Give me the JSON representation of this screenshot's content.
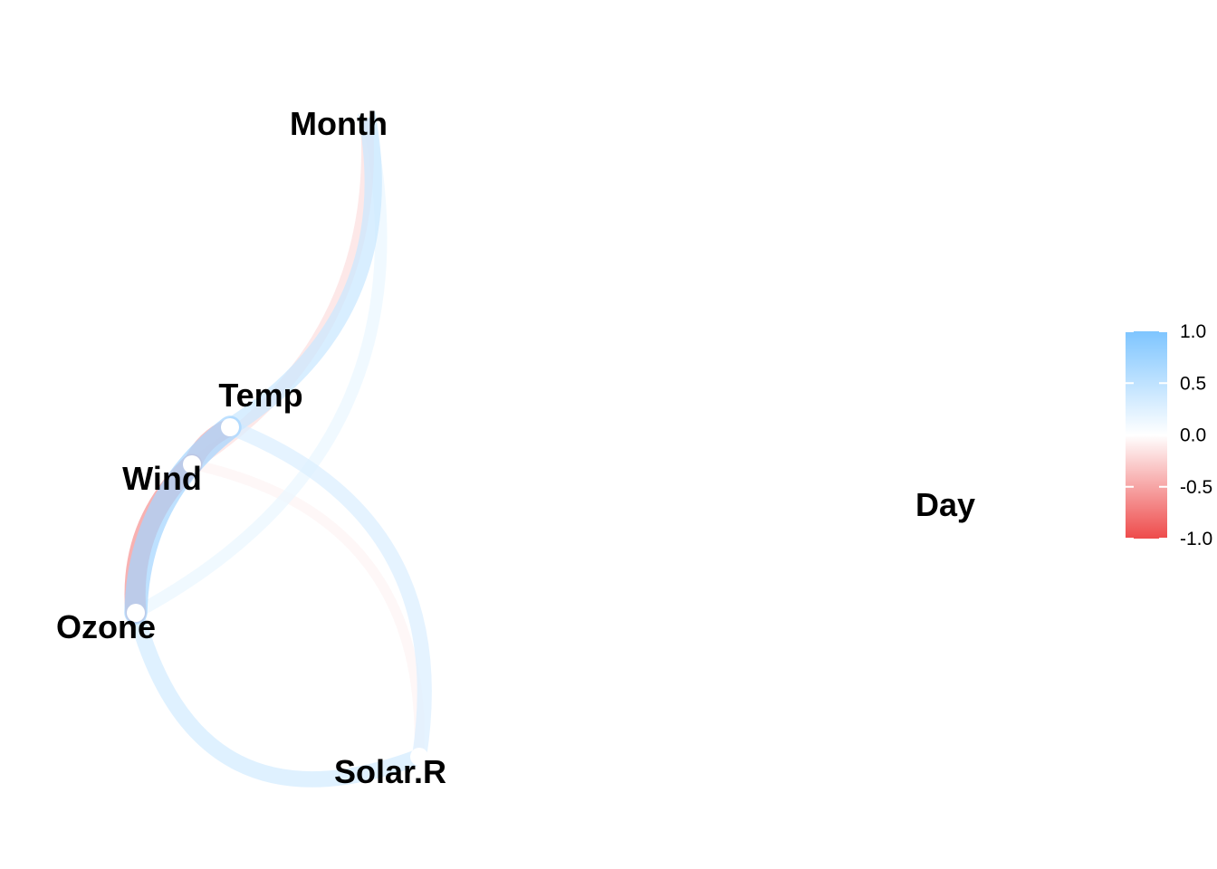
{
  "chart_data": {
    "type": "correlation-network",
    "variables": [
      "Ozone",
      "Solar.R",
      "Wind",
      "Temp",
      "Month",
      "Day"
    ],
    "edges": [
      {
        "from": "Ozone",
        "to": "Wind",
        "r": -0.6
      },
      {
        "from": "Ozone",
        "to": "Temp",
        "r": 0.7
      },
      {
        "from": "Ozone",
        "to": "Solar.R",
        "r": 0.35
      },
      {
        "from": "Ozone",
        "to": "Month",
        "r": 0.16
      },
      {
        "from": "Solar.R",
        "to": "Wind",
        "r": -0.06
      },
      {
        "from": "Solar.R",
        "to": "Temp",
        "r": 0.28
      },
      {
        "from": "Wind",
        "to": "Temp",
        "r": -0.46
      },
      {
        "from": "Wind",
        "to": "Month",
        "r": -0.18
      },
      {
        "from": "Temp",
        "to": "Month",
        "r": 0.42
      }
    ],
    "legend": {
      "position": "right",
      "ticks": [
        "1.0",
        "0.5",
        "0.0",
        "-0.5",
        "-1.0"
      ],
      "colors": {
        "negative": "#ee4b4b",
        "neutral": "#ffffff",
        "positive": "#7ec5ff"
      }
    }
  }
}
